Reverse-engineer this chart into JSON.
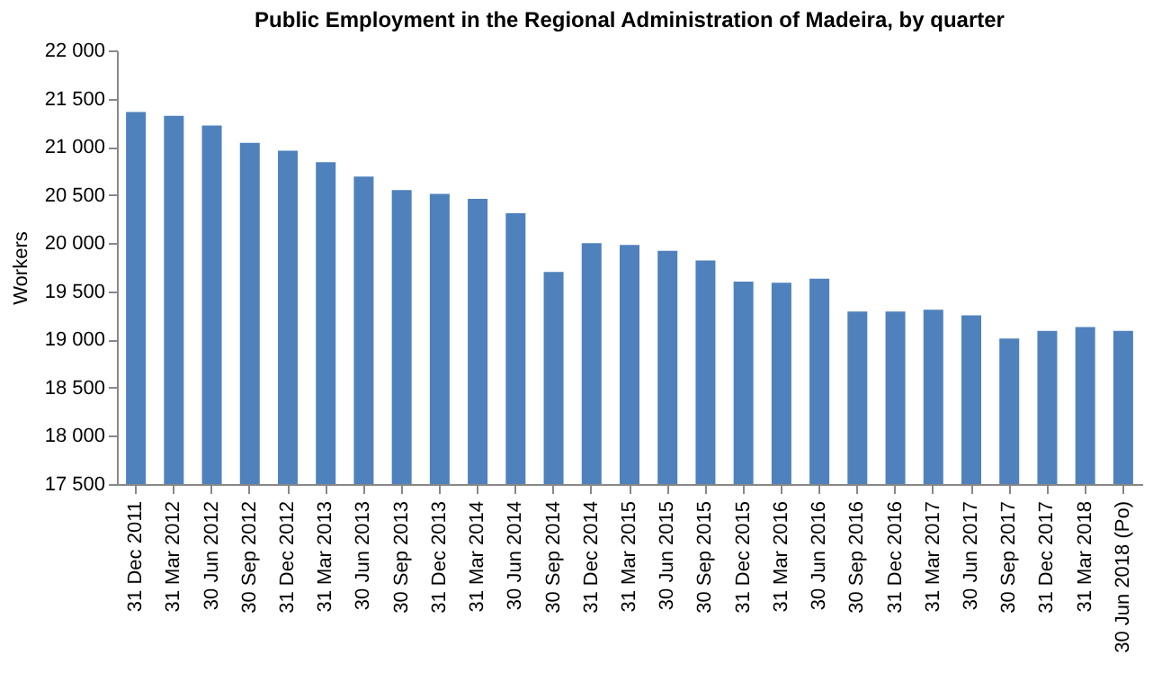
{
  "chart_data": {
    "type": "bar",
    "title": "Public Employment in the Regional Administration  of Madeira, by quarter",
    "ylabel": "Workers",
    "categories": [
      "31 Dec 2011",
      "31 Mar 2012",
      "30 Jun 2012",
      "30 Sep 2012",
      "31 Dec 2012",
      "31 Mar 2013",
      "30 Jun 2013",
      "30 Sep 2013",
      "31 Dec 2013",
      "31 Mar 2014",
      "30 Jun 2014",
      "30 Sep 2014",
      "31 Dec 2014",
      "31 Mar 2015",
      "30 Jun 2015",
      "30 Sep 2015",
      "31 Dec 2015",
      "31 Mar 2016",
      "30 Jun 2016",
      "30 Sep 2016",
      "31 Dec 2016",
      "31 Mar 2017",
      "30 Jun 2017",
      "30 Sep 2017",
      "31 Dec 2017",
      "31 Mar 2018",
      "30 Jun 2018 (Po)"
    ],
    "values": [
      21360,
      21320,
      21220,
      21040,
      20960,
      20840,
      20690,
      20550,
      20510,
      20460,
      20310,
      19700,
      20000,
      19980,
      19920,
      19820,
      19600,
      19590,
      19630,
      19290,
      19290,
      19310,
      19250,
      19010,
      19090,
      19130,
      19090
    ],
    "color": "#4f81bd",
    "ylim": [
      17500,
      22000
    ],
    "yticks": [
      {
        "value": 17500,
        "label": "17 500"
      },
      {
        "value": 18000,
        "label": "18 000"
      },
      {
        "value": 18500,
        "label": "18 500"
      },
      {
        "value": 19000,
        "label": "19 000"
      },
      {
        "value": 19500,
        "label": "19 500"
      },
      {
        "value": 20000,
        "label": "20 000"
      },
      {
        "value": 20500,
        "label": "20 500"
      },
      {
        "value": 21000,
        "label": "21 000"
      },
      {
        "value": 21500,
        "label": "21 500"
      },
      {
        "value": 22000,
        "label": "22 000"
      }
    ],
    "grid": false
  }
}
